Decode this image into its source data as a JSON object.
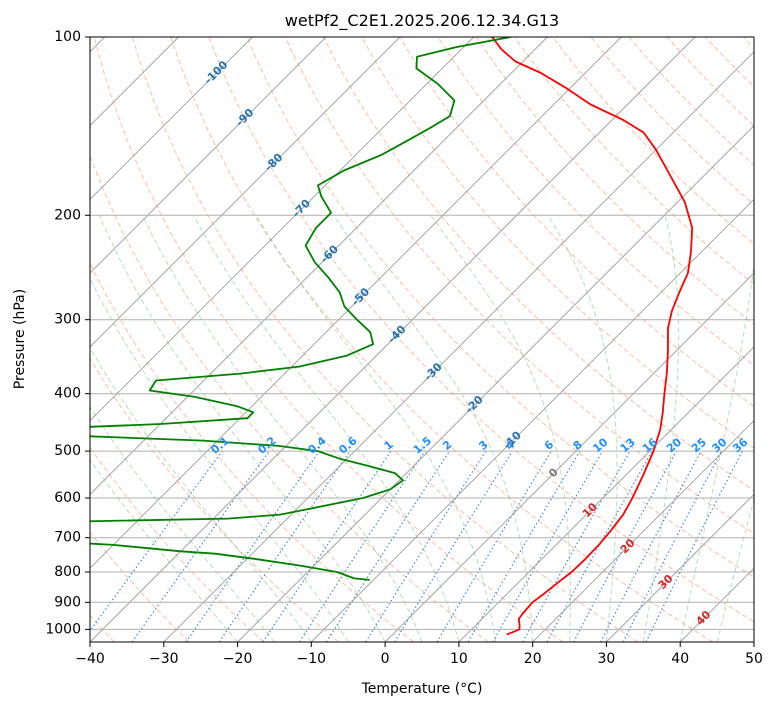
{
  "chart_data": {
    "type": "line",
    "subtype": "skew-t log-p",
    "title": "wetPf2_C2E1.2025.206.12.34.G13",
    "xlabel": "Temperature (°C)",
    "ylabel": "Pressure (hPa)",
    "xlim": [
      -40,
      50
    ],
    "ylim": [
      1050,
      100
    ],
    "y_scale": "log",
    "grid": true,
    "x_ticks": [
      -40,
      -30,
      -20,
      -10,
      0,
      10,
      20,
      30,
      40,
      50
    ],
    "x_tick_labels": [
      "−40",
      "−30",
      "−20",
      "−10",
      "0",
      "10",
      "20",
      "30",
      "40",
      "50"
    ],
    "y_ticks": [
      100,
      200,
      300,
      400,
      500,
      600,
      700,
      800,
      900,
      1000
    ],
    "y_tick_labels": [
      "100",
      "200",
      "300",
      "400",
      "500",
      "600",
      "700",
      "800",
      "900",
      "1000"
    ],
    "isotherm_labels": [
      {
        "value": -100,
        "text": "-100",
        "p": 115
      },
      {
        "value": -90,
        "text": "-90",
        "p": 137
      },
      {
        "value": -80,
        "text": "-80",
        "p": 163
      },
      {
        "value": -70,
        "text": "-70",
        "p": 195
      },
      {
        "value": -60,
        "text": "-60",
        "p": 233
      },
      {
        "value": -50,
        "text": "-50",
        "p": 275
      },
      {
        "value": -40,
        "text": "-40",
        "p": 318
      },
      {
        "value": -30,
        "text": "-30",
        "p": 368
      },
      {
        "value": -20,
        "text": "-20",
        "p": 418
      },
      {
        "value": -10,
        "text": "-10",
        "p": 480
      },
      {
        "value": 0,
        "text": "0",
        "p": 545
      },
      {
        "value": 10,
        "text": "10",
        "p": 630
      },
      {
        "value": 20,
        "text": "20",
        "p": 725
      },
      {
        "value": 30,
        "text": "30",
        "p": 833
      },
      {
        "value": 40,
        "text": "40",
        "p": 958
      }
    ],
    "mixing_ratio_labels": [
      "0.1",
      "0.2",
      "0.4",
      "0.6",
      "1",
      "1.5",
      "2",
      "3",
      "4",
      "6",
      "8",
      "10",
      "13",
      "16",
      "20",
      "25",
      "30",
      "36"
    ],
    "series": [
      {
        "color": "#ff0000",
        "points": [
          [
            1020,
            15.5
          ],
          [
            1000,
            16.5
          ],
          [
            985,
            16.0
          ],
          [
            960,
            15.0
          ],
          [
            940,
            14.8
          ],
          [
            900,
            14.6
          ],
          [
            870,
            15.0
          ],
          [
            840,
            15.3
          ],
          [
            800,
            15.8
          ],
          [
            760,
            15.9
          ],
          [
            720,
            15.8
          ],
          [
            680,
            15.5
          ],
          [
            640,
            15.0
          ],
          [
            600,
            14.0
          ],
          [
            550,
            12.4
          ],
          [
            500,
            10.5
          ],
          [
            460,
            8.5
          ],
          [
            430,
            6.5
          ],
          [
            400,
            4.2
          ],
          [
            370,
            1.8
          ],
          [
            340,
            -1.0
          ],
          [
            310,
            -4.2
          ],
          [
            290,
            -6.0
          ],
          [
            270,
            -7.5
          ],
          [
            250,
            -9.0
          ],
          [
            230,
            -11.5
          ],
          [
            210,
            -14.5
          ],
          [
            190,
            -19.0
          ],
          [
            170,
            -25.0
          ],
          [
            155,
            -30.0
          ],
          [
            145,
            -34.0
          ],
          [
            138,
            -38.5
          ],
          [
            130,
            -45.0
          ],
          [
            122,
            -50.5
          ],
          [
            115,
            -56.0
          ],
          [
            110,
            -61.0
          ],
          [
            105,
            -64.5
          ],
          [
            100,
            -67.5
          ]
        ]
      },
      {
        "color": "#008000",
        "points": [
          [
            825,
            -10.5
          ],
          [
            820,
            -12.8
          ],
          [
            800,
            -16.0
          ],
          [
            780,
            -22.0
          ],
          [
            760,
            -29.0
          ],
          [
            745,
            -35.0
          ],
          [
            738,
            -40.0
          ],
          [
            720,
            -50.0
          ],
          [
            700,
            -68.0
          ],
          [
            690,
            -85.0
          ],
          [
            670,
            -92.0
          ],
          [
            660,
            -65.0
          ],
          [
            650,
            -38.0
          ],
          [
            640,
            -31.5
          ],
          [
            620,
            -27.0
          ],
          [
            600,
            -22.5
          ],
          [
            580,
            -20.0
          ],
          [
            560,
            -19.5
          ],
          [
            545,
            -21.5
          ],
          [
            530,
            -26.0
          ],
          [
            515,
            -31.0
          ],
          [
            500,
            -35.0
          ],
          [
            490,
            -41.0
          ],
          [
            480,
            -52.0
          ],
          [
            470,
            -72.0
          ],
          [
            462,
            -82.0
          ],
          [
            450,
            -60.0
          ],
          [
            440,
            -49.0
          ],
          [
            430,
            -49.0
          ],
          [
            420,
            -52.0
          ],
          [
            405,
            -59.0
          ],
          [
            395,
            -66.0
          ],
          [
            380,
            -66.5
          ],
          [
            370,
            -56.0
          ],
          [
            360,
            -49.0
          ],
          [
            345,
            -44.0
          ],
          [
            330,
            -42.0
          ],
          [
            315,
            -44.0
          ],
          [
            300,
            -47.5
          ],
          [
            285,
            -51.0
          ],
          [
            270,
            -53.5
          ],
          [
            255,
            -57.0
          ],
          [
            240,
            -61.0
          ],
          [
            225,
            -64.5
          ],
          [
            210,
            -65.5
          ],
          [
            198,
            -65.5
          ],
          [
            186,
            -69.0
          ],
          [
            178,
            -71.0
          ],
          [
            168,
            -69.5
          ],
          [
            158,
            -66.5
          ],
          [
            150,
            -65.0
          ],
          [
            142,
            -63.5
          ],
          [
            136,
            -62.5
          ],
          [
            128,
            -64.0
          ],
          [
            120,
            -68.5
          ],
          [
            113,
            -73.5
          ],
          [
            108,
            -75.0
          ],
          [
            104,
            -71.0
          ],
          [
            100,
            -65.0
          ]
        ]
      }
    ]
  }
}
